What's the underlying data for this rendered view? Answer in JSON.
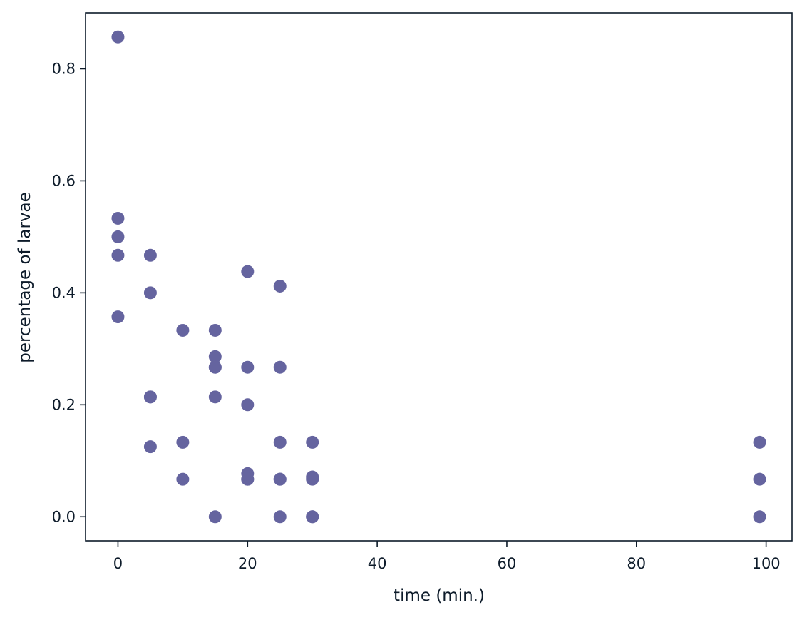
{
  "chart_data": {
    "type": "scatter",
    "title": "",
    "xlabel": "time (min.)",
    "ylabel": "percentage of larvae",
    "xlim": [
      -5,
      104
    ],
    "ylim": [
      -0.043,
      0.9
    ],
    "xticks": [
      0,
      20,
      40,
      60,
      80,
      100
    ],
    "yticks": [
      0.0,
      0.2,
      0.4,
      0.6,
      0.8
    ],
    "xtick_labels": [
      "0",
      "20",
      "40",
      "60",
      "80",
      "100"
    ],
    "ytick_labels": [
      "0.0",
      "0.2",
      "0.4",
      "0.6",
      "0.8"
    ],
    "grid": false,
    "legend": "none",
    "colors": {
      "points": "#65649f",
      "axes": "#0d1b2a",
      "text": "#0d1b2a",
      "background": "#ffffff"
    },
    "x": [
      0,
      0,
      0,
      0,
      0,
      5,
      5,
      5,
      5,
      5,
      10,
      10,
      10,
      15,
      15,
      15,
      15,
      15,
      15,
      20,
      20,
      20,
      20,
      20,
      20,
      25,
      25,
      25,
      25,
      25,
      25,
      30,
      30,
      30,
      30,
      30,
      99,
      99,
      99
    ],
    "y": [
      0.857,
      0.533,
      0.5,
      0.467,
      0.357,
      0.467,
      0.4,
      0.214,
      0.125,
      0.214,
      0.333,
      0.133,
      0.067,
      0.333,
      0.286,
      0.267,
      0.214,
      0.0,
      0.267,
      0.438,
      0.267,
      0.2,
      0.077,
      0.067,
      0.067,
      0.412,
      0.267,
      0.133,
      0.067,
      0.0,
      0.067,
      0.133,
      0.071,
      0.067,
      0.0,
      0.0,
      0.133,
      0.067,
      0.0
    ]
  }
}
